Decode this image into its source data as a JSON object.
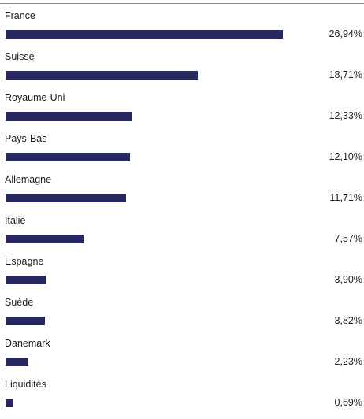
{
  "chart_data": {
    "type": "bar",
    "orientation": "horizontal",
    "categories": [
      "France",
      "Suisse",
      "Royaume-Uni",
      "Pays-Bas",
      "Allemagne",
      "Italie",
      "Espagne",
      "Suède",
      "Danemark",
      "Liquidités"
    ],
    "values": [
      26.94,
      18.71,
      12.33,
      12.1,
      11.71,
      7.57,
      3.9,
      3.82,
      2.23,
      0.69
    ],
    "value_labels": [
      "26,94%",
      "18,71%",
      "12,33%",
      "12,10%",
      "11,71%",
      "7,57%",
      "3,90%",
      "3,82%",
      "2,23%",
      "0,69%"
    ],
    "unit": "%",
    "bar_color": "#27285e",
    "xlim": [
      0,
      26.94
    ],
    "grid": false,
    "legend": "none"
  }
}
